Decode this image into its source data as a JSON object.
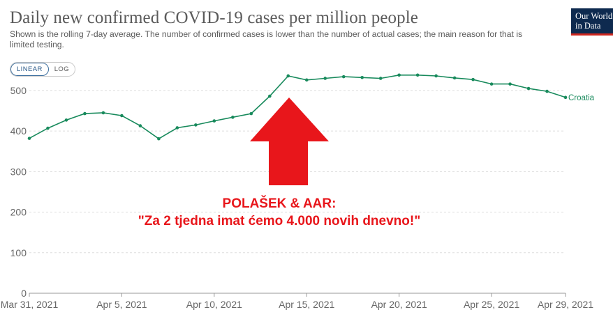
{
  "header": {
    "title": "Daily new confirmed COVID-19 cases per million people",
    "subtitle": "Shown is the rolling 7-day average. The number of confirmed cases is lower than the number of actual cases; the main reason for that is limited testing.",
    "logo_line1": "Our World",
    "logo_line2": "in Data"
  },
  "scale_toggle": {
    "linear_label": "LINEAR",
    "log_label": "LOG",
    "selected": "linear"
  },
  "annotation": {
    "line1": "POLAŠEK & AAR:",
    "line2": "\"Za 2 tjedna imat ćemo 4.000 novih dnevno!\"",
    "arrow_color": "#e8161b"
  },
  "chart_data": {
    "type": "line",
    "title": "Daily new confirmed COVID-19 cases per million people",
    "xlabel": "",
    "ylabel": "",
    "ylim": [
      0,
      560
    ],
    "yticks": [
      0,
      100,
      200,
      300,
      400,
      500
    ],
    "xtick_labels": [
      "Mar 31, 2021",
      "Apr 5, 2021",
      "Apr 10, 2021",
      "Apr 15, 2021",
      "Apr 20, 2021",
      "Apr 25, 2021",
      "Apr 29, 2021"
    ],
    "xtick_day_index": [
      0,
      5,
      10,
      15,
      20,
      25,
      29
    ],
    "grid": "horizontal dashed",
    "series": [
      {
        "name": "Croatia",
        "color": "#188a5c",
        "dates": [
          "Mar 31",
          "Apr 1",
          "Apr 2",
          "Apr 3",
          "Apr 4",
          "Apr 5",
          "Apr 6",
          "Apr 7",
          "Apr 8",
          "Apr 9",
          "Apr 10",
          "Apr 11",
          "Apr 12",
          "Apr 13",
          "Apr 14",
          "Apr 15",
          "Apr 16",
          "Apr 17",
          "Apr 18",
          "Apr 19",
          "Apr 20",
          "Apr 21",
          "Apr 22",
          "Apr 23",
          "Apr 24",
          "Apr 25",
          "Apr 26",
          "Apr 27",
          "Apr 28",
          "Apr 29"
        ],
        "values": [
          382,
          407,
          427,
          443,
          445,
          438,
          413,
          381,
          408,
          415,
          425,
          434,
          443,
          486,
          536,
          526,
          530,
          534,
          532,
          530,
          538,
          538,
          536,
          531,
          527,
          516,
          516,
          505,
          498,
          483
        ]
      }
    ]
  }
}
